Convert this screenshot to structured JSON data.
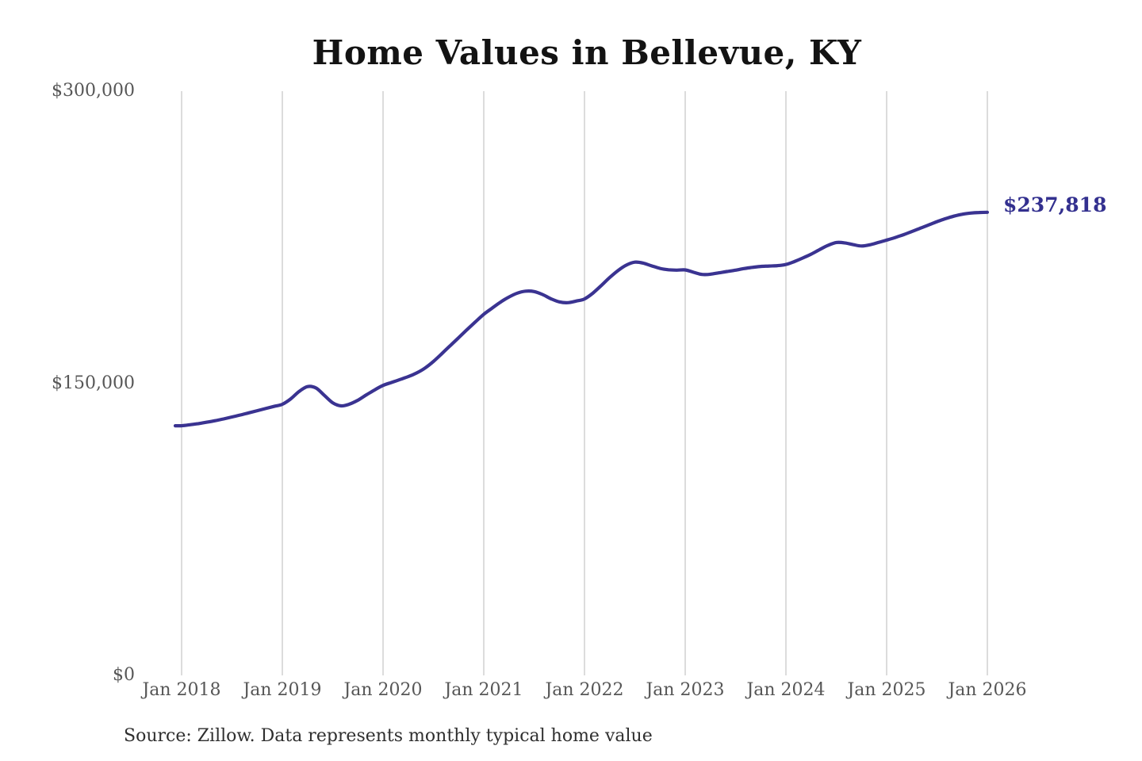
{
  "source_note": "Source: Zillow. Data represents monthly typical home value",
  "colors": {
    "line": "#3a3391",
    "end_label": "#33308f",
    "gridline": "#c9c9c9",
    "tick_label": "#575757",
    "title": "#131313",
    "source": "#2f2f2f",
    "background": "#ffffff"
  },
  "chart_data": {
    "type": "line",
    "title": "Home Values in Bellevue, KY",
    "xlabel": "",
    "ylabel": "",
    "ylim": [
      0,
      300000
    ],
    "grid": "vertical-only",
    "legend": "none",
    "x_unit": "month",
    "x_start": "Jan 2018",
    "x_end": "Jan 2026",
    "x_tick_labels": [
      "Jan 2018",
      "Jan 2019",
      "Jan 2020",
      "Jan 2021",
      "Jan 2022",
      "Jan 2023",
      "Jan 2024",
      "Jan 2025",
      "Jan 2026"
    ],
    "y_ticks": [
      {
        "value": 0,
        "label": "$0"
      },
      {
        "value": 150000,
        "label": "$150,000"
      },
      {
        "value": 300000,
        "label": "$300,000"
      }
    ],
    "end_annotation": {
      "label": "$237,818",
      "value": 237818
    },
    "series": [
      {
        "name": "Monthly typical home value",
        "color": "#3a3391",
        "values": [
          128200,
          128700,
          129300,
          130000,
          130800,
          131700,
          132700,
          133700,
          134800,
          135900,
          137000,
          138100,
          139200,
          142000,
          145800,
          148300,
          147600,
          143800,
          140000,
          138400,
          139300,
          141300,
          144000,
          146600,
          148900,
          150400,
          151900,
          153400,
          155300,
          157800,
          161200,
          165200,
          169300,
          173400,
          177500,
          181500,
          185400,
          188600,
          191700,
          194300,
          196300,
          197300,
          197100,
          195600,
          193400,
          191800,
          191400,
          192200,
          193300,
          196300,
          200200,
          204300,
          207900,
          210700,
          212200,
          211700,
          210300,
          209000,
          208300,
          208100,
          208200,
          207000,
          205900,
          206000,
          206700,
          207400,
          208100,
          208900,
          209500,
          210000,
          210200,
          210400,
          211000,
          212500,
          214300,
          216300,
          218600,
          220800,
          222300,
          222100,
          221200,
          220500,
          221100,
          222300,
          223500,
          224800,
          226300,
          227900,
          229600,
          231300,
          233000,
          234500,
          235800,
          236800,
          237400,
          237700,
          237818
        ]
      }
    ]
  }
}
